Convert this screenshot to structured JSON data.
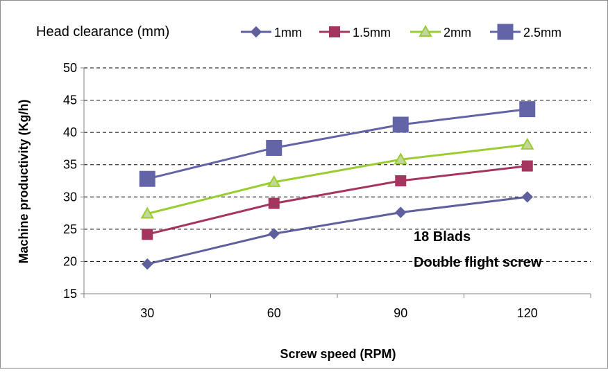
{
  "chart_data": {
    "type": "line",
    "title": "",
    "xlabel": "Screw speed (RPM)",
    "ylabel": "Machine productivity (Kg/h)",
    "categories": [
      "30",
      "60",
      "90",
      "120"
    ],
    "ylim": [
      15,
      50
    ],
    "yticks": [
      "15",
      "20",
      "25",
      "30",
      "35",
      "40",
      "45",
      "50"
    ],
    "grid": "horizontal dashed",
    "legend_title": "Head clearance (mm)",
    "legend_position": "top",
    "annotations": [
      "18 Blads",
      "Double flight screw"
    ],
    "series": [
      {
        "name": "1mm",
        "values": [
          19.6,
          24.3,
          27.6,
          30.0
        ],
        "color": "#5E5F9C",
        "marker": "diamond"
      },
      {
        "name": "1.5mm",
        "values": [
          24.2,
          29.0,
          32.5,
          34.8
        ],
        "color": "#A3355E",
        "marker": "square"
      },
      {
        "name": "2mm",
        "values": [
          27.4,
          32.3,
          35.8,
          38.1
        ],
        "color": "#9ACD32",
        "marker": "triangle"
      },
      {
        "name": "2.5mm",
        "values": [
          32.8,
          37.6,
          41.2,
          43.6
        ],
        "color": "#6264A7",
        "marker": "big-square"
      }
    ]
  }
}
